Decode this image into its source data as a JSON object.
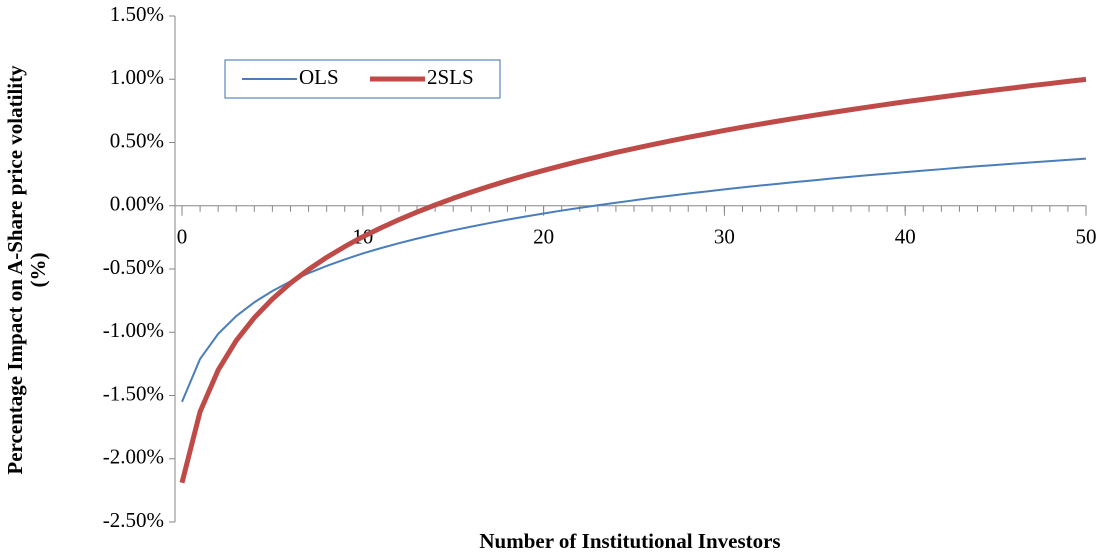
{
  "chart_data": {
    "type": "line",
    "x_label": "Number of Institutional Investors",
    "y_label": [
      "Percentage Impact on A-Share price volatility",
      "(%)"
    ],
    "x": [
      0,
      1,
      2,
      3,
      4,
      5,
      6,
      7,
      8,
      9,
      10,
      11,
      12,
      13,
      14,
      15,
      16,
      17,
      18,
      19,
      20,
      21,
      22,
      23,
      24,
      25,
      26,
      27,
      28,
      29,
      30,
      31,
      32,
      33,
      34,
      35,
      36,
      37,
      38,
      39,
      40,
      41,
      42,
      43,
      44,
      45,
      46,
      47,
      48,
      49,
      50
    ],
    "series": [
      {
        "name": "OLS",
        "color": "#4a7ebb",
        "values": [
          -1.55,
          -1.211,
          -1.013,
          -0.872,
          -0.763,
          -0.674,
          -0.598,
          -0.533,
          -0.476,
          -0.424,
          -0.377,
          -0.335,
          -0.296,
          -0.26,
          -0.226,
          -0.194,
          -0.165,
          -0.137,
          -0.11,
          -0.085,
          -0.061,
          -0.038,
          -0.017,
          0.004,
          0.024,
          0.043,
          0.062,
          0.079,
          0.097,
          0.113,
          0.129,
          0.145,
          0.16,
          0.174,
          0.189,
          0.202,
          0.216,
          0.229,
          0.242,
          0.254,
          0.266,
          0.278,
          0.289,
          0.301,
          0.312,
          0.322,
          0.333,
          0.343,
          0.353,
          0.363,
          0.373
        ]
      },
      {
        "name": "2SLS",
        "color": "#be4b48",
        "values": [
          -2.19,
          -1.628,
          -1.299,
          -1.066,
          -0.885,
          -0.737,
          -0.612,
          -0.504,
          -0.408,
          -0.323,
          -0.245,
          -0.175,
          -0.11,
          -0.05,
          0.006,
          0.059,
          0.108,
          0.154,
          0.198,
          0.24,
          0.279,
          0.317,
          0.353,
          0.387,
          0.421,
          0.452,
          0.483,
          0.512,
          0.541,
          0.568,
          0.595,
          0.621,
          0.646,
          0.67,
          0.693,
          0.716,
          0.738,
          0.76,
          0.781,
          0.802,
          0.822,
          0.841,
          0.86,
          0.879,
          0.897,
          0.915,
          0.932,
          0.95,
          0.966,
          0.983,
          0.999
        ]
      }
    ],
    "xlim": [
      0,
      50
    ],
    "xticks": [
      0,
      10,
      20,
      30,
      40,
      50
    ],
    "ylim": [
      -2.5,
      1.5
    ],
    "yticks": [
      {
        "value": 1.5,
        "label": "1.50%"
      },
      {
        "value": 1.0,
        "label": "1.00%"
      },
      {
        "value": 0.5,
        "label": "0.50%"
      },
      {
        "value": 0.0,
        "label": "0.00%"
      },
      {
        "value": -0.5,
        "label": "-0.50%"
      },
      {
        "value": -1.0,
        "label": "-1.00%"
      },
      {
        "value": -1.5,
        "label": "-1.50%"
      },
      {
        "value": -2.0,
        "label": "-2.00%"
      },
      {
        "value": -2.5,
        "label": "-2.50%"
      }
    ],
    "grid": false,
    "legend": "upper left"
  }
}
